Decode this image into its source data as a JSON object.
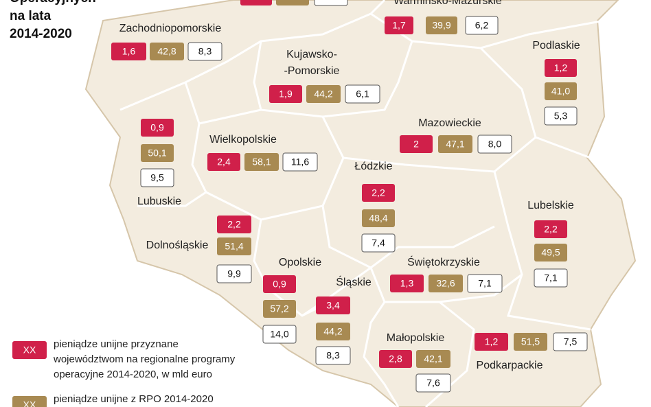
{
  "title": {
    "lines": [
      "Operacyjnych",
      "na lata",
      "2014-2020"
    ]
  },
  "regions": [
    {
      "name": [
        "Zachodniopomorskie"
      ],
      "values": [
        "1,6",
        "42,8",
        "8,3"
      ]
    },
    {
      "name": [
        "Warmińsko-Mazurskie"
      ],
      "values": [
        "1,7",
        "39,9",
        "6,2"
      ]
    },
    {
      "name": [
        "Kujawsko-",
        "-Pomorskie"
      ],
      "values": [
        "1,9",
        "44,2",
        "6,1"
      ]
    },
    {
      "name": [
        "Podlaskie"
      ],
      "values": [
        "1,2",
        "41,0",
        "5,3"
      ]
    },
    {
      "name": [
        "Mazowieckie"
      ],
      "values": [
        "2",
        "47,1",
        "8,0"
      ]
    },
    {
      "name": [
        "Lubuskie"
      ],
      "values": [
        "0,9",
        "50,1",
        "9,5"
      ]
    },
    {
      "name": [
        "Wielkopolskie"
      ],
      "values": [
        "2,4",
        "58,1",
        "11,6"
      ]
    },
    {
      "name": [
        "Łódzkie"
      ],
      "values": [
        "2,2",
        "48,4",
        "7,4"
      ]
    },
    {
      "name": [
        "Lubelskie"
      ],
      "values": [
        "2,2",
        "49,5",
        "7,1"
      ]
    },
    {
      "name": [
        "Dolnośląskie"
      ],
      "values": [
        "2,2",
        "51,4",
        "9,9"
      ]
    },
    {
      "name": [
        "Opolskie"
      ],
      "values": [
        "0,9",
        "57,2",
        "14,0"
      ]
    },
    {
      "name": [
        "Świętokrzyskie"
      ],
      "values": [
        "1,3",
        "32,6",
        "7,1"
      ]
    },
    {
      "name": [
        "Śląskie"
      ],
      "values": [
        "3,4",
        "44,2",
        "8,3"
      ]
    },
    {
      "name": [
        "Małopolskie"
      ],
      "values": [
        "2,8",
        "42,1",
        "7,6"
      ]
    },
    {
      "name": [
        "Podkarpackie"
      ],
      "values": [
        "1,2",
        "51,5",
        "7,5"
      ]
    }
  ],
  "legend": {
    "items": [
      {
        "key": "XX",
        "text": [
          "pieniądze unijne przyznane",
          "województwom na regionalne programy",
          "operacyjne 2014-2020, w mld euro"
        ]
      },
      {
        "key": "XX",
        "text": [
          "pieniądze unijne z RPO 2014-2020"
        ]
      }
    ]
  }
}
